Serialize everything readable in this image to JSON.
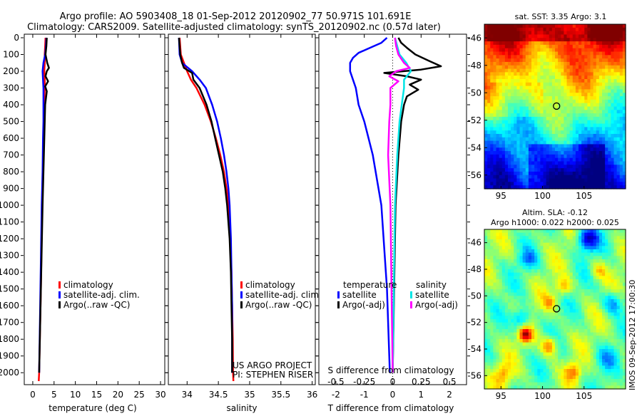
{
  "header": {
    "title_line1": "Argo profile: AO 5903408_18 01-Sep-2012 20120902_77 50.971S 101.691E",
    "title_line2": "Climatology: CARS2009. Satellite-adjusted climatology: synTS_20120902.nc (0.57d later)"
  },
  "credits": {
    "project": "US ARGO PROJECT",
    "pi": "PI: STEPHEN RISER",
    "vertical_stamp": "IMOS 09-Sep-2012 17:00:30"
  },
  "colors": {
    "climatology": "#ff0000",
    "satellite": "#0000ff",
    "argo": "#000000",
    "salinity_satellite": "#00e5e5",
    "salinity_argo": "#ff00ff"
  },
  "depth_axis": {
    "ylim": [
      0,
      2050
    ],
    "ticks": [
      0,
      100,
      200,
      300,
      400,
      500,
      600,
      700,
      800,
      900,
      1000,
      1100,
      1200,
      1300,
      1400,
      1500,
      1600,
      1700,
      1800,
      1900,
      2000
    ]
  },
  "chart_data": [
    {
      "type": "line",
      "id": "temperature",
      "xlabel": "temperature (deg C)",
      "xlim": [
        -2,
        31
      ],
      "xticks": [
        0,
        5,
        10,
        15,
        20,
        25,
        30
      ],
      "legend": [
        "climatology",
        "satellite-adj. clim.",
        "Argo(..raw -QC)"
      ],
      "series": [
        {
          "name": "climatology",
          "color": "#ff0000",
          "depth": [
            0,
            50,
            100,
            150,
            200,
            250,
            300,
            400,
            500,
            600,
            800,
            1000,
            1500,
            2000,
            2050
          ],
          "values": [
            3.0,
            2.9,
            2.8,
            2.8,
            2.7,
            2.8,
            2.8,
            2.7,
            2.6,
            2.5,
            2.4,
            2.2,
            1.9,
            1.5,
            1.4
          ]
        },
        {
          "name": "satellite-adj. clim.",
          "color": "#0000ff",
          "depth": [
            0,
            50,
            100,
            150,
            200,
            250,
            300,
            400,
            500,
            600,
            800,
            1000,
            1500,
            2000
          ],
          "values": [
            3.2,
            3.1,
            2.9,
            2.5,
            2.3,
            2.4,
            2.5,
            2.5,
            2.5,
            2.4,
            2.3,
            2.1,
            1.8,
            1.5
          ]
        },
        {
          "name": "Argo(..raw -QC)",
          "color": "#000000",
          "depth": [
            0,
            50,
            100,
            150,
            180,
            200,
            230,
            260,
            290,
            320,
            400,
            500,
            600,
            800,
            1000,
            1500,
            2000
          ],
          "values": [
            3.3,
            3.2,
            3.0,
            3.4,
            3.8,
            3.3,
            3.0,
            3.6,
            2.9,
            3.3,
            2.9,
            2.8,
            2.7,
            2.5,
            2.3,
            1.9,
            1.5
          ]
        }
      ]
    },
    {
      "type": "line",
      "id": "salinity",
      "xlabel": "salinity",
      "xlim": [
        33.7,
        36.05
      ],
      "xticks": [
        34,
        34.5,
        35,
        35.5,
        36
      ],
      "legend": [
        "climatology",
        "satellite-adj. clim.",
        "Argo(..raw -QC)"
      ],
      "series": [
        {
          "name": "climatology",
          "color": "#ff0000",
          "depth": [
            0,
            100,
            150,
            200,
            250,
            300,
            400,
            500,
            600,
            700,
            800,
            900,
            1000,
            1200,
            1400,
            1600,
            1800,
            2000,
            2050
          ],
          "values": [
            33.88,
            33.9,
            33.95,
            34.0,
            34.06,
            34.15,
            34.28,
            34.38,
            34.46,
            34.53,
            34.59,
            34.63,
            34.66,
            34.69,
            34.71,
            34.72,
            34.73,
            34.735,
            34.74
          ]
        },
        {
          "name": "satellite-adj. clim.",
          "color": "#0000ff",
          "depth": [
            0,
            100,
            150,
            200,
            250,
            300,
            400,
            500,
            600,
            700,
            800,
            900,
            1000,
            1200,
            1400,
            1600,
            1800,
            2000
          ],
          "values": [
            33.87,
            33.88,
            33.92,
            34.08,
            34.2,
            34.3,
            34.4,
            34.48,
            34.54,
            34.59,
            34.63,
            34.66,
            34.68,
            34.7,
            34.71,
            34.72,
            34.72,
            34.72
          ]
        },
        {
          "name": "Argo(..raw -QC)",
          "color": "#000000",
          "depth": [
            0,
            100,
            150,
            180,
            210,
            250,
            300,
            400,
            500,
            600,
            700,
            800,
            900,
            1000,
            1200,
            1400,
            1600,
            1800,
            2000
          ],
          "values": [
            33.87,
            33.89,
            33.92,
            33.95,
            34.08,
            34.1,
            34.2,
            34.31,
            34.39,
            34.45,
            34.51,
            34.57,
            34.61,
            34.64,
            34.68,
            34.7,
            34.71,
            34.72,
            34.72
          ]
        }
      ]
    },
    {
      "type": "line",
      "id": "differences",
      "xlabel": "T difference from climatology",
      "xlabel_top": "S difference from climatology",
      "xlim": [
        -2.6,
        2.6
      ],
      "xticks": [
        -2,
        -1,
        0,
        1,
        2
      ],
      "xticks_s": [
        -0.5,
        -0.25,
        0,
        0.25,
        0.5
      ],
      "legend_temperature_title": "temperature",
      "legend_salinity_title": "salinity",
      "legend_temperature": [
        "satellite",
        "Argo(-adj)"
      ],
      "legend_salinity": [
        "satellite",
        "Argo(-adj)"
      ],
      "series": [
        {
          "name": "temperature satellite",
          "color": "#0000ff",
          "depth": [
            0,
            30,
            60,
            90,
            120,
            150,
            200,
            250,
            300,
            400,
            500,
            700,
            1000,
            1500,
            2000
          ],
          "values": [
            -0.2,
            -0.4,
            -0.8,
            -1.2,
            -1.4,
            -1.5,
            -1.5,
            -1.4,
            -1.3,
            -1.2,
            -1.0,
            -0.7,
            -0.4,
            -0.2,
            -0.1
          ]
        },
        {
          "name": "temperature Argo(-adj)",
          "color": "#000000",
          "depth": [
            0,
            30,
            60,
            100,
            140,
            170,
            190,
            210,
            230,
            250,
            280,
            310,
            350,
            400,
            500,
            700,
            1000,
            1500,
            2000
          ],
          "values": [
            0.2,
            0.3,
            0.5,
            0.8,
            1.3,
            1.7,
            1.0,
            -0.3,
            0.5,
            1.0,
            0.6,
            0.9,
            0.5,
            0.4,
            0.3,
            0.2,
            0.1,
            0.05,
            0.0
          ]
        },
        {
          "name": "salinity satellite",
          "color": "#00e5e5",
          "depth": [
            0,
            50,
            100,
            150,
            200,
            250,
            300,
            400,
            500,
            700,
            1000,
            1500,
            2000
          ],
          "values": [
            0.02,
            0.04,
            0.06,
            0.12,
            0.16,
            0.1,
            0.1,
            0.08,
            0.06,
            0.04,
            0.02,
            0.01,
            0.0
          ]
        },
        {
          "name": "salinity Argo(-adj)",
          "color": "#ff00ff",
          "depth": [
            0,
            50,
            100,
            150,
            180,
            200,
            230,
            260,
            300,
            400,
            500,
            700,
            1000,
            1500,
            2000
          ],
          "values": [
            0.02,
            0.03,
            0.05,
            0.1,
            0.15,
            0.03,
            -0.03,
            0.05,
            -0.02,
            -0.02,
            -0.03,
            -0.04,
            -0.02,
            -0.01,
            0.0
          ]
        }
      ]
    },
    {
      "type": "heatmap",
      "id": "sst_map",
      "title": "sat. SST: 3.35 Argo: 3.1",
      "xlim": [
        93,
        110
      ],
      "ylim": [
        -57,
        -45
      ],
      "xticks": [
        95,
        100,
        105
      ],
      "yticks": [
        -46,
        -48,
        -50,
        -52,
        -54,
        -56
      ],
      "marker": [
        101.691,
        -50.971
      ],
      "colormap": "jet"
    },
    {
      "type": "heatmap",
      "id": "sla_map",
      "title_line1": "Altim. SLA: -0.12",
      "title_line2": "Argo h1000: 0.022 h2000: 0.025",
      "xlim": [
        93,
        110
      ],
      "ylim": [
        -57,
        -45
      ],
      "xticks": [
        95,
        100,
        105
      ],
      "yticks": [
        -46,
        -48,
        -50,
        -52,
        -54,
        -56
      ],
      "marker": [
        101.691,
        -50.971
      ],
      "colormap": "jet"
    }
  ]
}
